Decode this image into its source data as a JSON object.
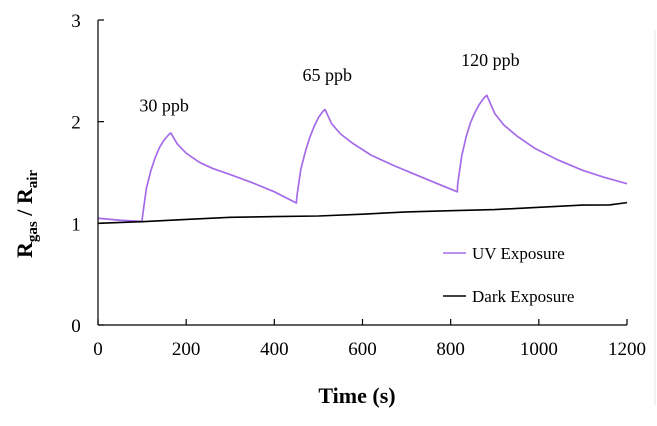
{
  "chart_data": {
    "type": "line",
    "xlabel": "Time (s)",
    "ylabel": {
      "main_1": "R",
      "sub_1": "gas",
      "separator": " / ",
      "main_2": "R",
      "sub_2": "air"
    },
    "xlim": [
      0,
      1200
    ],
    "ylim": [
      0,
      3
    ],
    "x_ticks": [
      0,
      200,
      400,
      600,
      800,
      1000,
      1200
    ],
    "y_ticks": [
      0,
      1,
      2,
      3
    ],
    "grid": false,
    "legend_position": "bottom-right",
    "series": [
      {
        "name": "UV Exposure",
        "color": "#a56be8",
        "points": [
          [
            0,
            1.05
          ],
          [
            50,
            1.03
          ],
          [
            100,
            1.02
          ],
          [
            101,
            1.07
          ],
          [
            110,
            1.35
          ],
          [
            120,
            1.52
          ],
          [
            130,
            1.65
          ],
          [
            140,
            1.75
          ],
          [
            150,
            1.82
          ],
          [
            160,
            1.87
          ],
          [
            165,
            1.89
          ],
          [
            180,
            1.78
          ],
          [
            200,
            1.69
          ],
          [
            230,
            1.6
          ],
          [
            260,
            1.54
          ],
          [
            300,
            1.48
          ],
          [
            350,
            1.4
          ],
          [
            400,
            1.31
          ],
          [
            450,
            1.2
          ],
          [
            451,
            1.26
          ],
          [
            460,
            1.53
          ],
          [
            470,
            1.7
          ],
          [
            480,
            1.84
          ],
          [
            490,
            1.95
          ],
          [
            500,
            2.04
          ],
          [
            510,
            2.1
          ],
          [
            515,
            2.12
          ],
          [
            530,
            1.98
          ],
          [
            550,
            1.88
          ],
          [
            580,
            1.78
          ],
          [
            620,
            1.67
          ],
          [
            670,
            1.57
          ],
          [
            720,
            1.48
          ],
          [
            770,
            1.39
          ],
          [
            815,
            1.31
          ],
          [
            816,
            1.39
          ],
          [
            825,
            1.66
          ],
          [
            835,
            1.85
          ],
          [
            845,
            1.99
          ],
          [
            855,
            2.09
          ],
          [
            865,
            2.17
          ],
          [
            875,
            2.23
          ],
          [
            882,
            2.26
          ],
          [
            900,
            2.08
          ],
          [
            920,
            1.97
          ],
          [
            950,
            1.86
          ],
          [
            990,
            1.74
          ],
          [
            1040,
            1.63
          ],
          [
            1100,
            1.52
          ],
          [
            1150,
            1.45
          ],
          [
            1200,
            1.39
          ]
        ]
      },
      {
        "name": "Dark Exposure",
        "color": "#000000",
        "points": [
          [
            0,
            1.0
          ],
          [
            100,
            1.02
          ],
          [
            200,
            1.035
          ],
          [
            300,
            1.05
          ],
          [
            400,
            1.065
          ],
          [
            500,
            1.08
          ],
          [
            600,
            1.095
          ],
          [
            700,
            1.11
          ],
          [
            800,
            1.125
          ],
          [
            900,
            1.14
          ],
          [
            1000,
            1.155
          ],
          [
            1100,
            1.17
          ],
          [
            1160,
            1.18
          ],
          [
            1200,
            1.2
          ]
        ]
      }
    ],
    "annotations": [
      {
        "text": "30 ppb",
        "x": 150,
        "y": 2.1
      },
      {
        "text": "65 ppb",
        "x": 520,
        "y": 2.4
      },
      {
        "text": "120 ppb",
        "x": 890,
        "y": 2.55
      }
    ]
  }
}
